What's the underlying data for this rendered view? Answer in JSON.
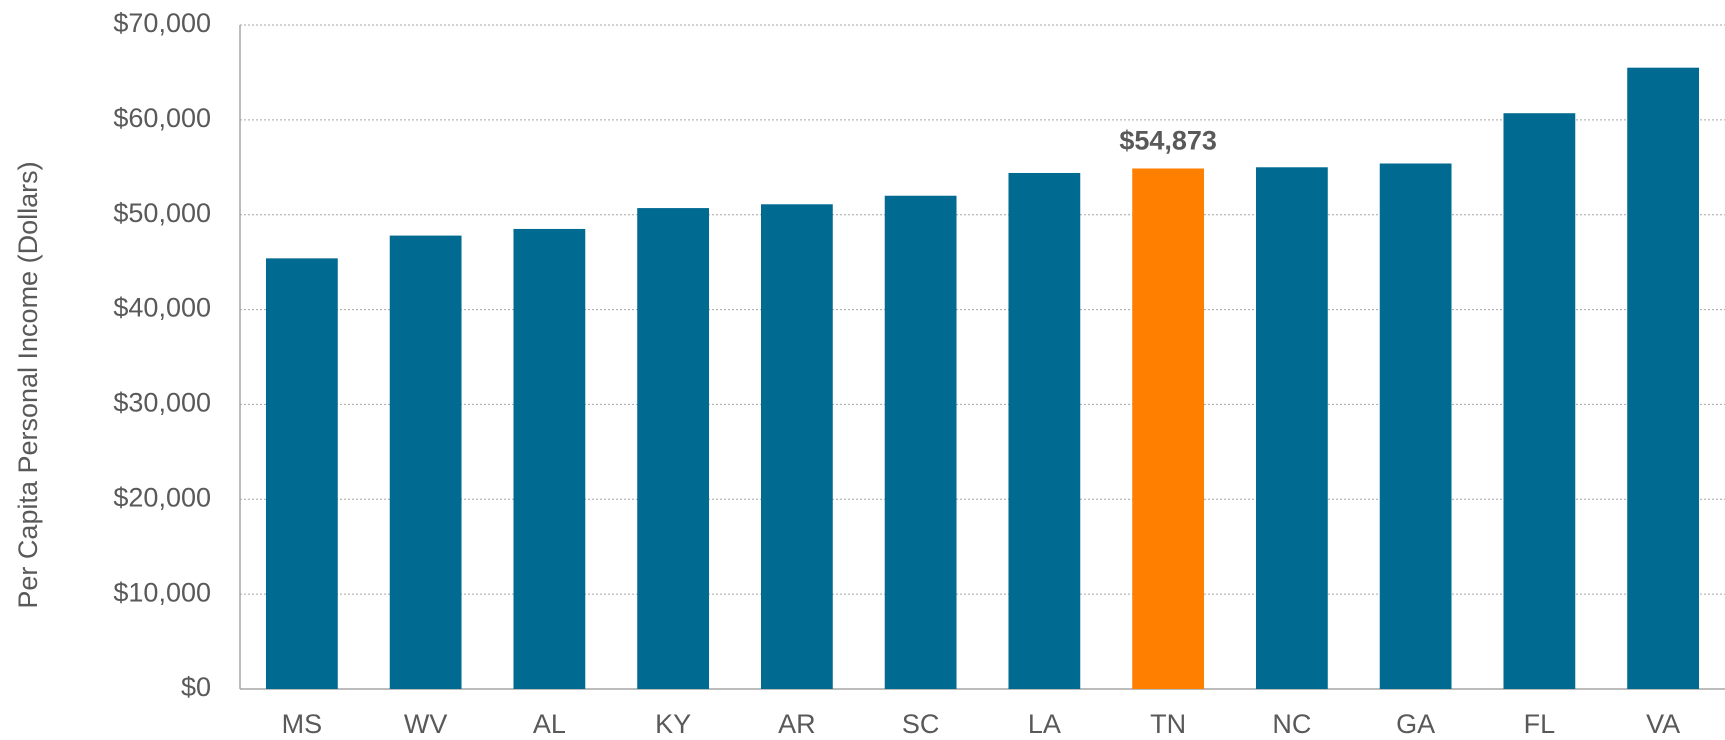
{
  "chart_data": {
    "type": "bar",
    "y_label": "Per Capita Personal Income (Dollars)",
    "categories": [
      "MS",
      "WV",
      "AL",
      "KY",
      "AR",
      "SC",
      "LA",
      "TN",
      "NC",
      "GA",
      "FL",
      "VA"
    ],
    "values": [
      45400,
      47800,
      48500,
      50700,
      51100,
      52000,
      54400,
      54873,
      55000,
      55400,
      60700,
      65500
    ],
    "value_labels": [
      null,
      null,
      null,
      null,
      null,
      null,
      null,
      "$54,873",
      null,
      null,
      null,
      null
    ],
    "colors": [
      "#006a91",
      "#006a91",
      "#006a91",
      "#006a91",
      "#006a91",
      "#006a91",
      "#006a91",
      "#ff8000",
      "#006a91",
      "#006a91",
      "#006a91",
      "#006a91"
    ],
    "ylim": [
      0,
      70000
    ],
    "yticks": [
      {
        "value": 0,
        "label": "$0"
      },
      {
        "value": 10000,
        "label": "$10,000"
      },
      {
        "value": 20000,
        "label": "$20,000"
      },
      {
        "value": 30000,
        "label": "$30,000"
      },
      {
        "value": 40000,
        "label": "$40,000"
      },
      {
        "value": 50000,
        "label": "$50,000"
      },
      {
        "value": 60000,
        "label": "$60,000"
      },
      {
        "value": 70000,
        "label": "$70,000"
      }
    ],
    "grid": true
  }
}
